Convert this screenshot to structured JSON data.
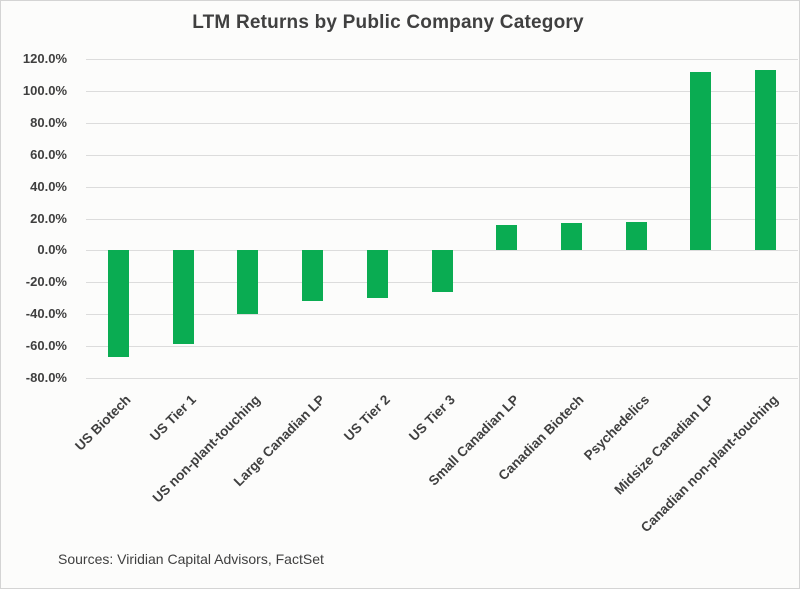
{
  "chart_data": {
    "type": "bar",
    "title": "LTM Returns by Public Company Category",
    "categories": [
      "US Biotech",
      "US Tier 1",
      "US non-plant-touching",
      "Large Canadian LP",
      "US Tier 2",
      "US Tier 3",
      "Small Canadian LP",
      "Canadian Biotech",
      "Psychedelics",
      "Midsize Canadian LP",
      "Canadian non-plant-touching"
    ],
    "values": [
      -67,
      -59,
      -40,
      -32,
      -30,
      -26,
      16,
      17,
      18,
      112,
      113
    ],
    "value_unit": "percent",
    "xlabel": "",
    "ylabel": "",
    "ylim": [
      -80,
      120
    ],
    "ytick_step": 20,
    "ytick_labels": [
      "120.0%",
      "100.0%",
      "80.0%",
      "60.0%",
      "40.0%",
      "20.0%",
      "0.0%",
      "-20.0%",
      "-40.0%",
      "-60.0%",
      "-80.0%"
    ],
    "grid": true,
    "legend": false
  },
  "source_note": "Sources: Viridian Capital Advisors, FactSet",
  "colors": {
    "bar": "#0aac52",
    "title_text": "#404040",
    "axis_text": "#3f3f3f",
    "gridline": "#dcdcdc",
    "background": "#fcfcfb",
    "border": "#d4d4d4"
  }
}
